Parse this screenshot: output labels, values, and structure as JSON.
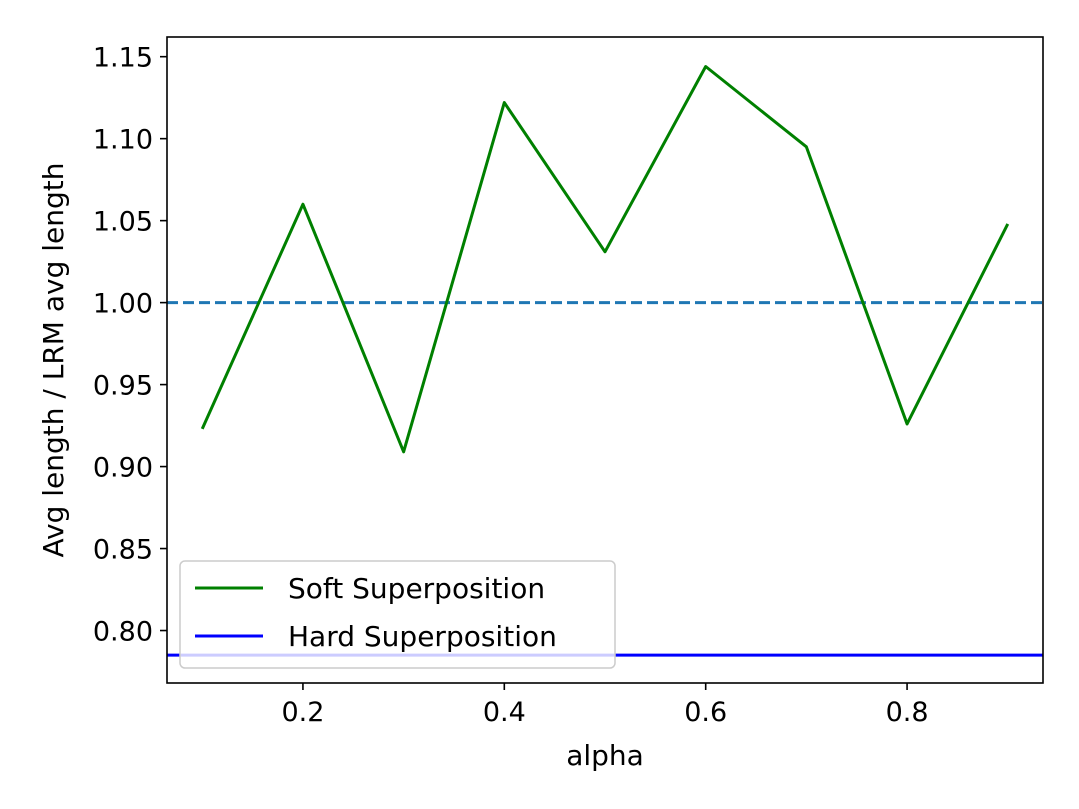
{
  "chart_data": {
    "type": "line",
    "title": "",
    "xlabel": "alpha",
    "ylabel": "Avg length / LRM avg length",
    "xlim": [
      0.065,
      0.935
    ],
    "ylim": [
      0.768,
      1.162
    ],
    "xticks": [
      "0.2",
      "0.4",
      "0.6",
      "0.8"
    ],
    "xtick_values": [
      0.2,
      0.4,
      0.6,
      0.8
    ],
    "yticks": [
      "0.80",
      "0.85",
      "0.90",
      "0.95",
      "1.00",
      "1.05",
      "1.10",
      "1.15"
    ],
    "ytick_values": [
      0.8,
      0.85,
      0.9,
      0.95,
      1.0,
      1.05,
      1.1,
      1.15
    ],
    "grid": false,
    "legend_position": "lower-left",
    "series": [
      {
        "name": "Soft Superposition",
        "color": "#008000",
        "style": "solid",
        "x": [
          0.1,
          0.2,
          0.3,
          0.4,
          0.5,
          0.6,
          0.7,
          0.8,
          0.9
        ],
        "y": [
          0.923,
          1.06,
          0.909,
          1.122,
          1.031,
          1.144,
          1.095,
          0.926,
          1.048
        ]
      },
      {
        "name": "Hard Superposition",
        "color": "#0000ff",
        "style": "hline",
        "y": 0.785
      }
    ],
    "reference_lines": [
      {
        "y": 1.0,
        "color": "#1f77b4",
        "style": "dashed"
      }
    ]
  }
}
